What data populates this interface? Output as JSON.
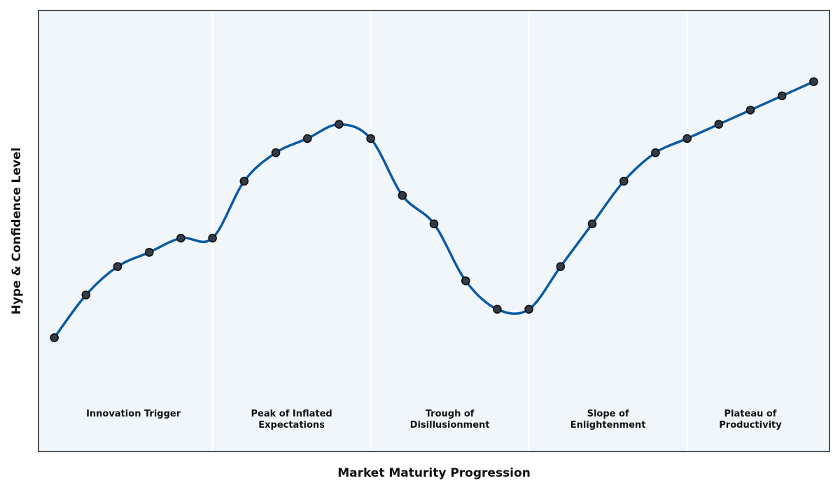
{
  "chart_data": {
    "type": "line",
    "title": "",
    "xlabel": "Market Maturity Progression",
    "ylabel": "Hype & Confidence Level",
    "grid": false,
    "x_ticks_visible": false,
    "y_ticks_visible": false,
    "xlim": [
      -0.5,
      24.5
    ],
    "ylim": [
      0,
      31
    ],
    "phases": [
      {
        "lines": [
          "Innovation Trigger"
        ],
        "x_start": -0.5,
        "x_end": 5
      },
      {
        "lines": [
          "Peak of Inflated",
          "Expectations"
        ],
        "x_start": 5,
        "x_end": 10
      },
      {
        "lines": [
          "Trough of",
          "Disillusionment"
        ],
        "x_start": 10,
        "x_end": 15
      },
      {
        "lines": [
          "Slope of",
          "Enlightenment"
        ],
        "x_start": 15,
        "x_end": 20
      },
      {
        "lines": [
          "Plateau of",
          "Productivity"
        ],
        "x_start": 20,
        "x_end": 24.5
      }
    ],
    "series": [
      {
        "x": [
          0,
          1,
          2,
          3,
          4,
          5,
          6,
          7,
          8,
          9,
          10,
          11,
          12,
          13,
          14,
          15,
          16,
          17,
          18,
          19,
          20,
          21,
          22,
          23,
          24
        ],
        "values": [
          8,
          11,
          13,
          14,
          15,
          15,
          19,
          21,
          22,
          23,
          22,
          18,
          16,
          12,
          10,
          10,
          13,
          16,
          19,
          21,
          22,
          23,
          24,
          25,
          26
        ]
      }
    ],
    "colors": {
      "line": "#0b5aa3",
      "marker_fill": "#333c48",
      "marker_edge": "#0d0d0d",
      "plot_background": "#f1f6fb",
      "phase_divider": "#ffffff",
      "frame": "#2a2a2a"
    }
  }
}
